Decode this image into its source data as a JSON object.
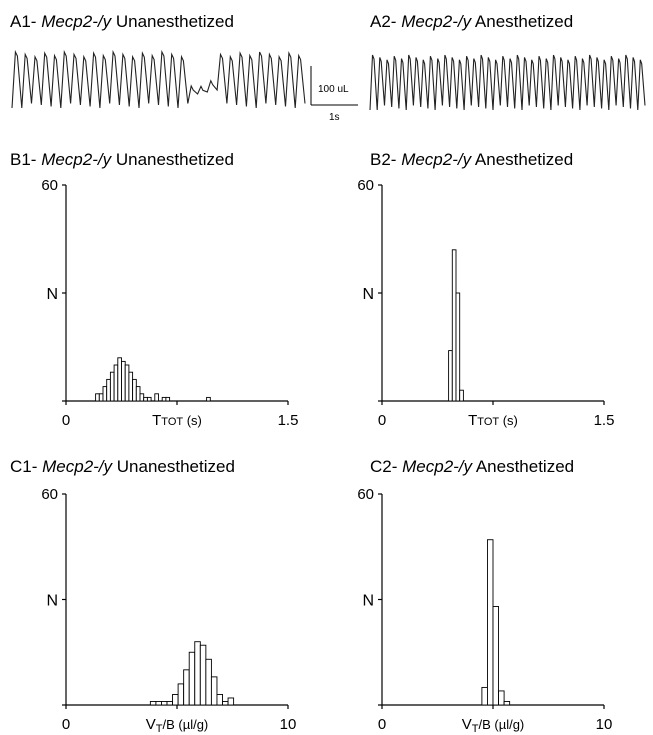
{
  "panels": {
    "A1": {
      "prefix": "A1- ",
      "genotype": "Mecp2-/y",
      "condition": " Unanesthetized"
    },
    "A2": {
      "prefix": "A2- ",
      "genotype": "Mecp2-/y",
      "condition": " Anesthetized"
    },
    "B1": {
      "prefix": "B1- ",
      "genotype": "Mecp2-/y",
      "condition": " Unanesthetized"
    },
    "B2": {
      "prefix": "B2- ",
      "genotype": "Mecp2-/y",
      "condition": " Anesthetized"
    },
    "C1": {
      "prefix": "C1- ",
      "genotype": "Mecp2-/y",
      "condition": " Unanesthetized"
    },
    "C2": {
      "prefix": "C2- ",
      "genotype": "Mecp2-/y",
      "condition": " Anesthetized"
    }
  },
  "scale_bar": {
    "volume_label": "100 uL",
    "time_label": "1s"
  },
  "chart_data": [
    {
      "id": "A1",
      "type": "line",
      "description_of_series": "plethysmograph breathing trace",
      "cycles": 30,
      "pause_from_cycle": 18,
      "pause_to_cycle": 21
    },
    {
      "id": "A2",
      "type": "line",
      "cycles": 38
    },
    {
      "id": "B1",
      "type": "bar",
      "ylabel": "N",
      "ylim": [
        0,
        60
      ],
      "yticks": [
        "60",
        "",
        "0"
      ],
      "xlabel_main": "T",
      "xlabel_sub": "TOT",
      "xlabel_unit": " (s)",
      "xlim": [
        0,
        1.5
      ],
      "xticks": [
        "0",
        "",
        "1.5"
      ],
      "bin_start": 0.2,
      "bin_width": 0.025,
      "values": [
        2,
        2,
        4,
        6,
        8,
        10,
        12,
        11,
        10,
        8,
        6,
        4,
        2,
        1,
        1,
        0,
        2,
        0,
        1,
        1,
        0,
        0,
        0,
        0,
        0,
        0,
        0,
        0,
        0,
        0,
        1
      ]
    },
    {
      "id": "B2",
      "type": "bar",
      "ylabel": "N",
      "ylim": [
        0,
        60
      ],
      "yticks": [
        "60",
        "",
        "0"
      ],
      "xlabel_main": "T",
      "xlabel_sub": "TOT",
      "xlabel_unit": " (s)",
      "xlim": [
        0,
        1.5
      ],
      "xticks": [
        "0",
        "",
        "1.5"
      ],
      "bin_start": 0.45,
      "bin_width": 0.025,
      "values": [
        14,
        42,
        30,
        3
      ]
    },
    {
      "id": "C1",
      "type": "bar",
      "ylabel": "N",
      "ylim": [
        0,
        60
      ],
      "yticks": [
        "60",
        "",
        "0"
      ],
      "xlabel_main": "V",
      "xlabel_sub": "T",
      "xlabel_unit": "/B (µl/g)",
      "xlim": [
        0,
        10
      ],
      "xticks": [
        "0",
        "",
        "10"
      ],
      "bin_start": 3.8,
      "bin_width": 0.25,
      "values": [
        1,
        1,
        1,
        1,
        3,
        6,
        10,
        15,
        18,
        17,
        13,
        8,
        3,
        1,
        2
      ]
    },
    {
      "id": "C2",
      "type": "bar",
      "ylabel": "N",
      "ylim": [
        0,
        60
      ],
      "yticks": [
        "60",
        "",
        "0"
      ],
      "xlabel_main": "V",
      "xlabel_sub": "T",
      "xlabel_unit": "/B (µl/g)",
      "xlim": [
        0,
        10
      ],
      "xticks": [
        "0",
        "",
        "10"
      ],
      "bin_start": 4.5,
      "bin_width": 0.25,
      "values": [
        5,
        47,
        28,
        4,
        1
      ]
    }
  ]
}
